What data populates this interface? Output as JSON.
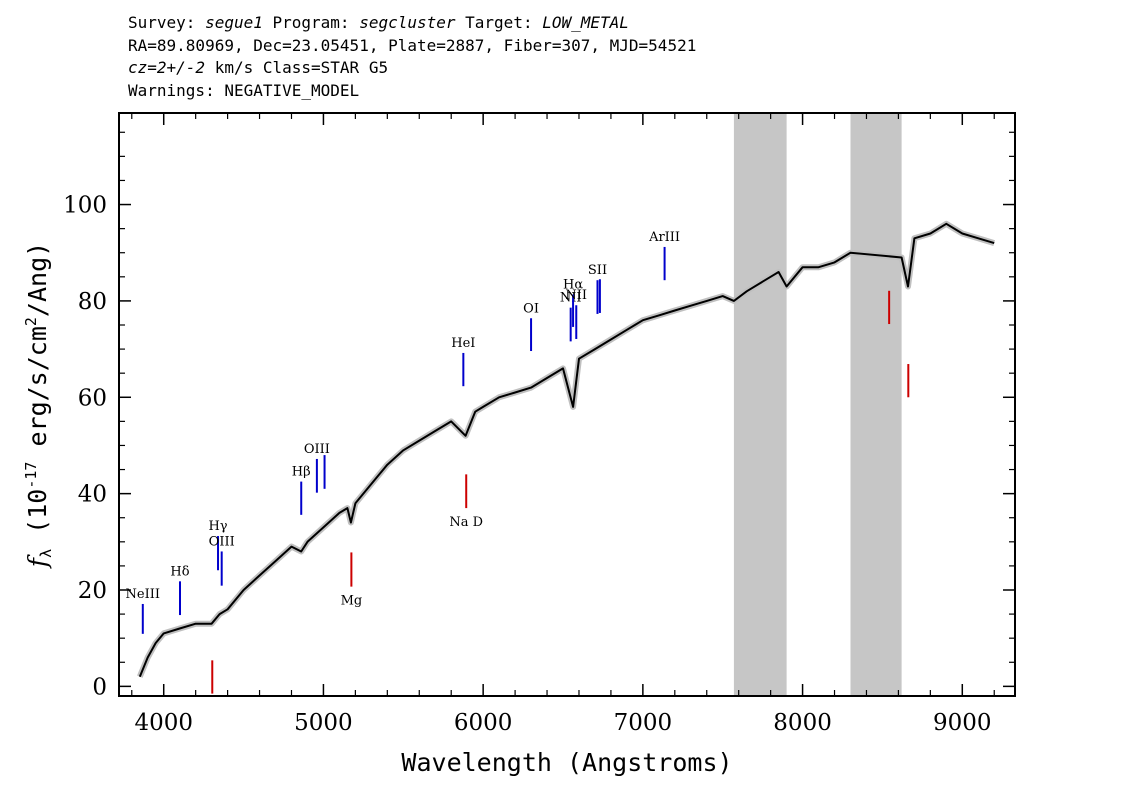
{
  "header": {
    "survey_label": "Survey: ",
    "survey": "segue1",
    "program_label": " Program: ",
    "program": "segcluster",
    "target_label": " Target: ",
    "target": "LOW_METAL",
    "line2": "RA=89.80969, Dec=23.05451, Plate=2887, Fiber=307, MJD=54521",
    "cz": "cz=2+/-2",
    "line3_rest": " km/s Class=STAR G5",
    "line4": "Warnings: NEGATIVE_MODEL"
  },
  "chart_data": {
    "type": "line",
    "xlabel": "Wavelength (Angstroms)",
    "ylabel_prefix": "f",
    "ylabel_sub": "λ",
    "ylabel_units": "(10",
    "ylabel_exp": "-17",
    "ylabel_units2": " erg/s/cm",
    "ylabel_exp2": "2",
    "ylabel_units3": "/Ang)",
    "xlim": [
      3720,
      9330
    ],
    "ylim": [
      -2,
      119
    ],
    "x_ticks": [
      4000,
      5000,
      6000,
      7000,
      8000,
      9000
    ],
    "y_ticks": [
      0,
      20,
      40,
      60,
      80,
      100
    ],
    "shaded_bands": [
      [
        7570,
        7900
      ],
      [
        8300,
        8620
      ]
    ],
    "series": [
      {
        "x": [
          3850,
          3900,
          3950,
          4000,
          4100,
          4200,
          4300,
          4350,
          4400,
          4500,
          4600,
          4700,
          4800,
          4861,
          4900,
          5000,
          5100,
          5150,
          5172,
          5200,
          5300,
          5400,
          5500,
          5600,
          5700,
          5800,
          5890,
          5950,
          6000,
          6100,
          6200,
          6300,
          6400,
          6500,
          6563,
          6600,
          6700,
          6800,
          6900,
          7000,
          7100,
          7200,
          7300,
          7400,
          7500,
          7570,
          7650,
          7800,
          7850,
          7900,
          8000,
          8100,
          8200,
          8300,
          8620,
          8660,
          8700,
          8800,
          8900,
          9000,
          9100,
          9200
        ],
        "values": [
          2,
          6,
          9,
          11,
          12,
          13,
          13,
          15,
          16,
          20,
          23,
          26,
          29,
          28,
          30,
          33,
          36,
          37,
          34,
          38,
          42,
          46,
          49,
          51,
          53,
          55,
          52,
          57,
          58,
          60,
          61,
          62,
          64,
          66,
          58,
          68,
          70,
          72,
          74,
          76,
          77,
          78,
          79,
          80,
          81,
          80,
          82,
          85,
          86,
          83,
          87,
          87,
          88,
          90,
          89,
          83,
          93,
          94,
          96,
          94,
          93,
          92
        ],
        "color": "#000000",
        "error_color": "#c0c0c0"
      }
    ],
    "emission_lines": [
      {
        "label": "NeIII",
        "x": 3869,
        "y_top": 17.1,
        "y_bot": 10.9,
        "color": "#0000cc"
      },
      {
        "label": "Hδ",
        "x": 4102,
        "y_top": 21.8,
        "y_bot": 14.8,
        "color": "#0000cc"
      },
      {
        "label": "Hγ",
        "x": 4340,
        "y_top": 31.2,
        "y_bot": 24.1,
        "color": "#0000cc"
      },
      {
        "label": "OIII",
        "x": 4363,
        "y_top": 28.0,
        "y_bot": 20.9,
        "color": "#0000cc"
      },
      {
        "label": "Hβ",
        "x": 4861,
        "y_top": 42.5,
        "y_bot": 35.6,
        "color": "#0000cc"
      },
      {
        "label": "OIII",
        "x": 4959,
        "y_top": 47.2,
        "y_bot": 40.2,
        "color": "#0000cc"
      },
      {
        "label": "",
        "x": 5007,
        "y_top": 48.0,
        "y_bot": 41.0,
        "color": "#0000cc"
      },
      {
        "label": "HeI",
        "x": 5876,
        "y_top": 69.2,
        "y_bot": 62.3,
        "color": "#0000cc"
      },
      {
        "label": "OI",
        "x": 6300,
        "y_top": 76.4,
        "y_bot": 69.6,
        "color": "#0000cc"
      },
      {
        "label": "NII",
        "x": 6548,
        "y_top": 78.6,
        "y_bot": 71.6,
        "color": "#0000cc"
      },
      {
        "label": "Hα",
        "x": 6563,
        "y_top": 81.3,
        "y_bot": 74.6,
        "color": "#0000cc"
      },
      {
        "label": "NII",
        "x": 6583,
        "y_top": 79.1,
        "y_bot": 72.1,
        "color": "#0000cc"
      },
      {
        "label": "SII",
        "x": 6716,
        "y_top": 84.3,
        "y_bot": 77.3,
        "color": "#0000cc"
      },
      {
        "label": "",
        "x": 6731,
        "y_top": 84.5,
        "y_bot": 77.5,
        "color": "#0000cc"
      },
      {
        "label": "ArIII",
        "x": 7136,
        "y_top": 91.2,
        "y_bot": 84.3,
        "color": "#0000cc"
      }
    ],
    "absorption_lines": [
      {
        "label": "",
        "x": 4304,
        "y_top": 5.4,
        "y_bot": -1.5,
        "color": "#cc0000"
      },
      {
        "label": "Mg",
        "x": 5175,
        "y_top": 27.8,
        "y_bot": 20.7,
        "color": "#cc0000"
      },
      {
        "label": "Na D",
        "x": 5894,
        "y_top": 44.0,
        "y_bot": 37.0,
        "color": "#cc0000"
      },
      {
        "label": "",
        "x": 8542,
        "y_top": 82.1,
        "y_bot": 75.2,
        "color": "#cc0000"
      },
      {
        "label": "",
        "x": 8662,
        "y_top": 66.9,
        "y_bot": 60.0,
        "color": "#cc0000"
      }
    ]
  }
}
